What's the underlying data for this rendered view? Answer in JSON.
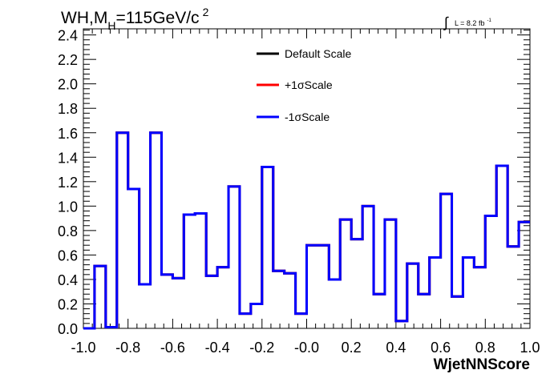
{
  "header": {
    "title_main": "WH,M",
    "title_sub": "H",
    "title_rest": "=115GeV/c",
    "title_sup": "2",
    "lumi_integral": "∫",
    "lumi_text": "L = 8.2 fb",
    "lumi_sup": "-1"
  },
  "chart_data": {
    "type": "step",
    "xlabel": "WjetNNScore",
    "xlim": [
      -1.0,
      1.0
    ],
    "ylim": [
      0.0,
      2.45
    ],
    "x_ticks": [
      "-1.0",
      "-0.8",
      "-0.6",
      "-0.4",
      "-0.2",
      "-0.0",
      "0.2",
      "0.4",
      "0.6",
      "0.8",
      "1.0"
    ],
    "y_ticks": [
      "0.0",
      "0.2",
      "0.4",
      "0.6",
      "0.8",
      "1.0",
      "1.2",
      "1.4",
      "1.6",
      "1.8",
      "2.0",
      "2.2",
      "2.4"
    ],
    "bin_edges": [
      -1.0,
      -0.95,
      -0.9,
      -0.85,
      -0.8,
      -0.75,
      -0.7,
      -0.65,
      -0.6,
      -0.55,
      -0.5,
      -0.45,
      -0.4,
      -0.35,
      -0.3,
      -0.25,
      -0.2,
      -0.15,
      -0.1,
      -0.05,
      0.0,
      0.05,
      0.1,
      0.15,
      0.2,
      0.25,
      0.3,
      0.35,
      0.4,
      0.45,
      0.5,
      0.55,
      0.6,
      0.65,
      0.7,
      0.75,
      0.8,
      0.85,
      0.9,
      0.95,
      1.0
    ],
    "legend": [
      {
        "label": "Default Scale",
        "color": "#000000"
      },
      {
        "label": "+1σScale",
        "color": "#ff0000"
      },
      {
        "label": "-1σScale",
        "color": "#0000ff"
      }
    ],
    "series": [
      {
        "name": "Default Scale",
        "color": "#000000",
        "values": [
          0.0,
          0.51,
          0.01,
          1.6,
          1.14,
          0.36,
          1.6,
          0.44,
          0.41,
          0.93,
          0.94,
          0.43,
          0.5,
          1.16,
          0.12,
          0.2,
          1.32,
          0.47,
          0.45,
          0.12,
          0.68,
          0.68,
          0.4,
          0.89,
          0.73,
          1.0,
          0.28,
          0.89,
          0.06,
          0.53,
          0.28,
          0.58,
          1.1,
          0.26,
          0.58,
          0.5,
          0.92,
          1.33,
          0.67,
          0.87
        ]
      },
      {
        "name": "+1σScale",
        "color": "#ff0000",
        "values": [
          0.0,
          0.51,
          0.01,
          1.6,
          1.14,
          0.36,
          1.6,
          0.44,
          0.41,
          0.93,
          0.94,
          0.43,
          0.5,
          1.16,
          0.12,
          0.2,
          1.32,
          0.47,
          0.45,
          0.12,
          0.68,
          0.68,
          0.4,
          0.89,
          0.73,
          1.0,
          0.28,
          0.89,
          0.06,
          0.53,
          0.28,
          0.58,
          1.1,
          0.26,
          0.58,
          0.5,
          0.92,
          1.33,
          0.67,
          0.87
        ]
      },
      {
        "name": "-1σScale",
        "color": "#0000ff",
        "values": [
          0.0,
          0.51,
          0.01,
          1.6,
          1.14,
          0.36,
          1.6,
          0.44,
          0.41,
          0.93,
          0.94,
          0.43,
          0.5,
          1.16,
          0.12,
          0.2,
          1.32,
          0.47,
          0.45,
          0.12,
          0.68,
          0.68,
          0.4,
          0.89,
          0.73,
          1.0,
          0.28,
          0.89,
          0.06,
          0.53,
          0.28,
          0.58,
          1.1,
          0.26,
          0.58,
          0.5,
          0.92,
          1.33,
          0.67,
          0.87
        ]
      }
    ]
  }
}
